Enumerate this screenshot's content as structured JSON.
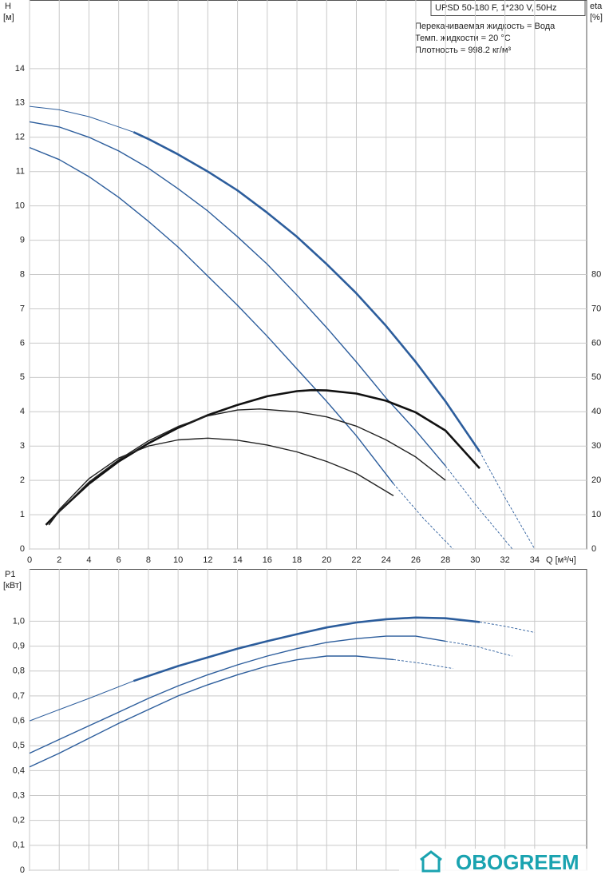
{
  "chart_data": [
    {
      "type": "line",
      "x_label": "Q [м³/ч]",
      "y_label": "H",
      "y_unit": "[м]",
      "y2_label": "eta",
      "y2_unit": "[%]",
      "annotations": [
        "UPSD 50-180 F, 1*230 V, 50Hz",
        "Перекачиваемая жидкость = Вода",
        "Темп. жидкости = 20 °C",
        "Плотность = 998.2 кг/м³"
      ],
      "xlim": [
        0,
        37.5
      ],
      "xticks": [
        0,
        2,
        4,
        6,
        8,
        10,
        12,
        14,
        16,
        18,
        20,
        22,
        24,
        26,
        28,
        30,
        32,
        34
      ],
      "ylim": [
        0,
        16
      ],
      "yticks": [
        0,
        1,
        2,
        3,
        4,
        5,
        6,
        7,
        8,
        9,
        10,
        11,
        12,
        13,
        14
      ],
      "y2lim": [
        0,
        160
      ],
      "y2ticks": [
        0,
        10,
        20,
        30,
        40,
        50,
        60,
        70,
        80
      ],
      "grid": true,
      "series": [
        {
          "color": "#2c5d9c",
          "line": "thin",
          "x": [
            0,
            2,
            4,
            7
          ],
          "values": [
            12.9,
            12.8,
            12.6,
            12.15
          ]
        },
        {
          "color": "#2c5d9c",
          "line": "thick",
          "x": [
            7,
            8,
            10,
            12,
            14,
            16,
            18,
            20,
            22,
            24,
            26,
            28,
            30.3
          ],
          "values": [
            12.15,
            11.95,
            11.5,
            11.0,
            10.45,
            9.8,
            9.1,
            8.3,
            7.45,
            6.5,
            5.45,
            4.3,
            2.84
          ]
        },
        {
          "color": "#2c5d9c",
          "line": "dashed",
          "x": [
            30.3,
            32,
            34
          ],
          "values": [
            2.84,
            1.5,
            0
          ]
        },
        {
          "color": "#2c5d9c",
          "line": "normal",
          "x": [
            0,
            2,
            4,
            6,
            8,
            10,
            12,
            14,
            16,
            18,
            20,
            22,
            24,
            26,
            28
          ],
          "values": [
            12.45,
            12.3,
            12.0,
            11.6,
            11.1,
            10.5,
            9.85,
            9.1,
            8.3,
            7.4,
            6.45,
            5.45,
            4.4,
            3.45,
            2.42
          ]
        },
        {
          "color": "#2c5d9c",
          "line": "dashed",
          "x": [
            28,
            30,
            32.5
          ],
          "values": [
            2.42,
            1.3,
            0
          ]
        },
        {
          "color": "#2c5d9c",
          "line": "normal",
          "x": [
            0,
            2,
            4,
            6,
            8,
            10,
            12,
            14,
            16,
            18,
            20,
            22,
            24.5
          ],
          "values": [
            11.7,
            11.35,
            10.85,
            10.25,
            9.55,
            8.8,
            7.95,
            7.1,
            6.2,
            5.25,
            4.3,
            3.3,
            1.9
          ]
        },
        {
          "color": "#2c5d9c",
          "line": "dashed",
          "x": [
            24.5,
            26.5,
            28.5
          ],
          "values": [
            1.9,
            0.9,
            0
          ]
        },
        {
          "color": "#111111",
          "line": "thick",
          "axis": "y2",
          "x": [
            1.1,
            2,
            4,
            6,
            8,
            10,
            12,
            14,
            16,
            18,
            19,
            20,
            22,
            24,
            26,
            28,
            30.3
          ],
          "values": [
            7,
            11,
            19,
            25.5,
            30.8,
            35.3,
            39,
            42,
            44.5,
            46,
            46.3,
            46.2,
            45.3,
            43.2,
            39.8,
            34.5,
            23.5
          ]
        },
        {
          "color": "#222222",
          "line": "normal",
          "axis": "y2",
          "x": [
            1.3,
            2,
            4,
            6,
            8,
            10,
            12,
            14,
            15.5,
            18,
            20,
            22,
            24,
            26,
            28
          ],
          "values": [
            7,
            11,
            19.5,
            26,
            31.5,
            35.7,
            38.8,
            40.5,
            40.8,
            40,
            38.5,
            35.8,
            31.8,
            26.8,
            20
          ]
        },
        {
          "color": "#222222",
          "line": "normal",
          "axis": "y2",
          "x": [
            1.3,
            2,
            4,
            6,
            8,
            10,
            12,
            14,
            16,
            18,
            20,
            22,
            24.5
          ],
          "values": [
            7,
            11.5,
            20.5,
            26.5,
            30,
            31.8,
            32.3,
            31.7,
            30.3,
            28.3,
            25.5,
            22,
            15.5
          ]
        }
      ]
    },
    {
      "type": "line",
      "y_label": "P1",
      "y_unit": "[кВт]",
      "xlim": [
        0,
        37.5
      ],
      "xticks": [
        0,
        2,
        4,
        6,
        8,
        10,
        12,
        14,
        16,
        18,
        20,
        22,
        24,
        26,
        28,
        30,
        32,
        34
      ],
      "ylim": [
        0,
        1.21
      ],
      "yticks": [
        0,
        {
          "value": 0.1,
          "label": "0,1"
        },
        {
          "value": 0.2,
          "label": "0,2"
        },
        {
          "value": 0.3,
          "label": "0,3"
        },
        {
          "value": 0.4,
          "label": "0,4"
        },
        {
          "value": 0.5,
          "label": "0,5"
        },
        {
          "value": 0.6,
          "label": "0,6"
        },
        {
          "value": 0.7,
          "label": "0,7"
        },
        {
          "value": 0.8,
          "label": "0,8"
        },
        {
          "value": 0.9,
          "label": "0,9"
        },
        {
          "value": 1,
          "label": "1,0"
        }
      ],
      "grid": true,
      "series": [
        {
          "color": "#2c5d9c",
          "line": "thin",
          "x": [
            0,
            2,
            4,
            7
          ],
          "values": [
            0.6,
            0.645,
            0.69,
            0.76
          ]
        },
        {
          "color": "#2c5d9c",
          "line": "thick",
          "x": [
            7,
            10,
            12,
            14,
            16,
            18,
            20,
            22,
            24,
            26,
            28,
            30.3
          ],
          "values": [
            0.76,
            0.82,
            0.855,
            0.89,
            0.92,
            0.948,
            0.975,
            0.995,
            1.008,
            1.015,
            1.012,
            0.997
          ]
        },
        {
          "color": "#2c5d9c",
          "line": "dashed",
          "x": [
            30.3,
            32,
            34
          ],
          "values": [
            0.997,
            0.98,
            0.955
          ]
        },
        {
          "color": "#2c5d9c",
          "line": "normal",
          "x": [
            0,
            2,
            4,
            6,
            8,
            10,
            12,
            14,
            16,
            18,
            20,
            22,
            24,
            26,
            28
          ],
          "values": [
            0.47,
            0.525,
            0.58,
            0.635,
            0.69,
            0.74,
            0.785,
            0.825,
            0.86,
            0.89,
            0.915,
            0.93,
            0.94,
            0.94,
            0.92
          ]
        },
        {
          "color": "#2c5d9c",
          "line": "dashed",
          "x": [
            28,
            30,
            32.5
          ],
          "values": [
            0.92,
            0.9,
            0.86
          ]
        },
        {
          "color": "#2c5d9c",
          "line": "normal",
          "x": [
            0,
            2,
            4,
            6,
            8,
            10,
            12,
            14,
            16,
            18,
            20,
            22,
            24.5
          ],
          "values": [
            0.415,
            0.47,
            0.53,
            0.59,
            0.645,
            0.7,
            0.745,
            0.785,
            0.82,
            0.845,
            0.86,
            0.86,
            0.846
          ]
        },
        {
          "color": "#2c5d9c",
          "line": "dashed",
          "x": [
            24.5,
            26.5,
            28.5
          ],
          "values": [
            0.846,
            0.83,
            0.81
          ]
        }
      ]
    }
  ],
  "watermark": "OBOGREEM"
}
